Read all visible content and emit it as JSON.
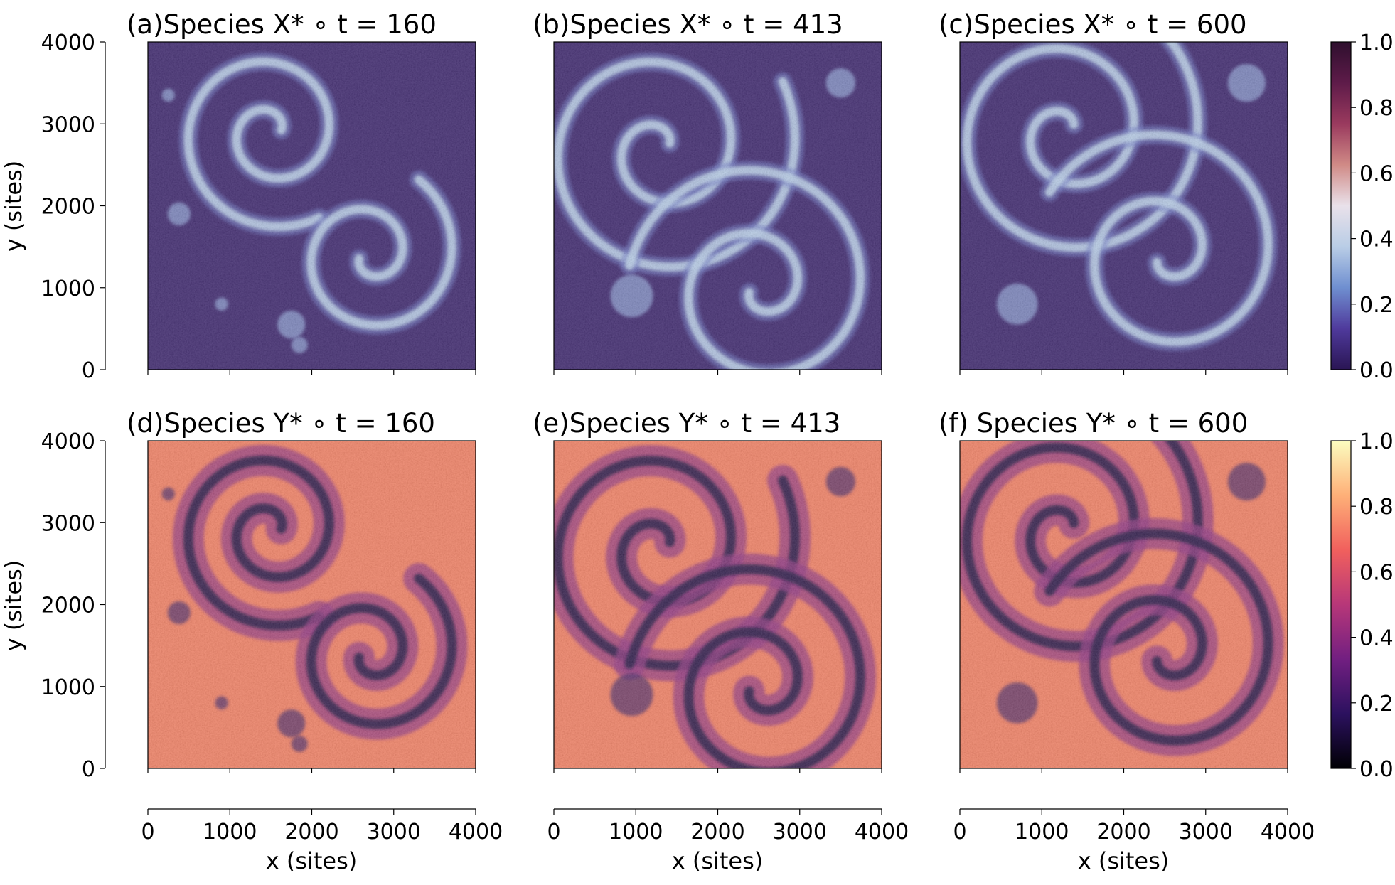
{
  "chart_data": {
    "type": "heatmap",
    "xlabel": "x (sites)",
    "ylabel": "y (sites)",
    "xlim": [
      0,
      4000
    ],
    "ylim": [
      0,
      4000
    ],
    "ticks": [
      0,
      1000,
      2000,
      3000,
      4000
    ],
    "tick_labels": [
      "0",
      "1000",
      "2000",
      "3000",
      "4000"
    ],
    "panels": [
      {
        "title": "(a)Species X* ∘ t = 160",
        "species": "X",
        "t": 160
      },
      {
        "title": "(b)Species X* ∘ t = 413",
        "species": "X",
        "t": 413
      },
      {
        "title": "(c)Species X* ∘ t = 600",
        "species": "X",
        "t": 600
      },
      {
        "title": "(d)Species Y* ∘ t = 160",
        "species": "Y",
        "t": 160
      },
      {
        "title": "(e)Species Y* ∘ t = 413",
        "species": "Y",
        "t": 413
      },
      {
        "title": "(f) Species Y* ∘ t = 600",
        "species": "Y",
        "t": 600
      }
    ],
    "colorbars": [
      {
        "species": "X",
        "range": [
          0.0,
          1.0
        ],
        "tick_labels": [
          "0.0",
          "0.2",
          "0.4",
          "0.6",
          "0.8",
          "1.0"
        ],
        "colormap": [
          "#2a1554",
          "#4f3a9c",
          "#6f8fd0",
          "#b9cde6",
          "#e9e1ea",
          "#d08a86",
          "#9a3a5e",
          "#5e1b49",
          "#2e0f2e"
        ]
      },
      {
        "species": "Y",
        "range": [
          0.0,
          1.0
        ],
        "tick_labels": [
          "0.0",
          "0.2",
          "0.4",
          "0.6",
          "0.8",
          "1.0"
        ],
        "colormap": [
          "#000004",
          "#2c115f",
          "#721f81",
          "#b73779",
          "#f1605d",
          "#feb078",
          "#fcfdbf"
        ]
      }
    ],
    "spirals": [
      {
        "panel": 0,
        "cx": 1500,
        "cy": 2900,
        "r0": 130,
        "r1": 1200,
        "turns": 1.8,
        "phase": 0.2,
        "dir": 1
      },
      {
        "panel": 0,
        "cx": 2700,
        "cy": 1400,
        "r0": 130,
        "r1": 1100,
        "turns": 1.6,
        "phase": 3.5,
        "dir": 1
      },
      {
        "panel": 1,
        "cx": 1300,
        "cy": 2700,
        "r0": 130,
        "r1": 1700,
        "turns": 2.0,
        "phase": 0.5,
        "dir": 1
      },
      {
        "panel": 1,
        "cx": 2500,
        "cy": 1000,
        "r0": 130,
        "r1": 1600,
        "turns": 1.9,
        "phase": 3.6,
        "dir": 1
      },
      {
        "panel": 2,
        "cx": 1300,
        "cy": 2900,
        "r0": 130,
        "r1": 1700,
        "turns": 2.0,
        "phase": 0.8,
        "dir": 1
      },
      {
        "panel": 2,
        "cx": 2500,
        "cy": 1400,
        "r0": 130,
        "r1": 1600,
        "turns": 1.8,
        "phase": 3.9,
        "dir": 1
      }
    ],
    "spots": [
      {
        "panel": 0,
        "x": 250,
        "y": 3350,
        "r": 80
      },
      {
        "panel": 0,
        "x": 380,
        "y": 1900,
        "r": 140
      },
      {
        "panel": 0,
        "x": 1750,
        "y": 550,
        "r": 170
      },
      {
        "panel": 0,
        "x": 1850,
        "y": 300,
        "r": 100
      },
      {
        "panel": 0,
        "x": 900,
        "y": 800,
        "r": 80
      },
      {
        "panel": 1,
        "x": 3500,
        "y": 3500,
        "r": 180
      },
      {
        "panel": 1,
        "x": 950,
        "y": 900,
        "r": 260
      },
      {
        "panel": 2,
        "x": 3500,
        "y": 3500,
        "r": 230
      },
      {
        "panel": 2,
        "x": 700,
        "y": 800,
        "r": 250
      }
    ]
  }
}
